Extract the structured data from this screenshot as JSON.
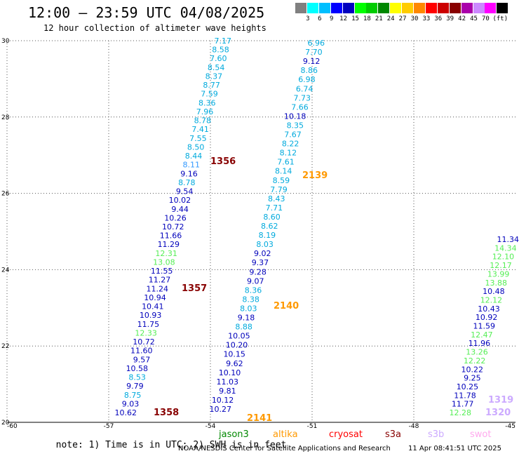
{
  "header": {
    "title": "12:00 — 23:59 UTC 04/08/2025",
    "subtitle": "12 hour collection of altimeter wave heights"
  },
  "colorbar": {
    "colors": [
      "#808080",
      "#00ffff",
      "#00bfff",
      "#0000ff",
      "#0000bf",
      "#00ff00",
      "#00cc00",
      "#008800",
      "#ffff00",
      "#ffcc00",
      "#ff8800",
      "#ff0000",
      "#cc0000",
      "#880000",
      "#aa00aa",
      "#cc88ff",
      "#ff00ff",
      "#000000"
    ],
    "labels": [
      "3",
      "6",
      "9",
      "12",
      "15",
      "18",
      "21",
      "24",
      "27",
      "30",
      "33",
      "36",
      "39",
      "42",
      "45",
      "70"
    ],
    "unit": "(ft)"
  },
  "map": {
    "lon_range": [
      -60,
      -45
    ],
    "lat_range": [
      20,
      30
    ],
    "x_ticks": [
      "-60",
      "-57",
      "-54",
      "-51",
      "-48",
      "-45"
    ],
    "y_ticks": [
      "20",
      "22",
      "24",
      "26",
      "28",
      "30"
    ],
    "tracks": [
      {
        "name": "track-1356-1358",
        "values": [
          "7.17",
          "8.58",
          "7.60",
          "8.54",
          "8.37",
          "8.77",
          "7.59",
          "8.36",
          "7.96",
          "8.78",
          "7.41",
          "7.55",
          "8.50",
          "8.44",
          "8.11",
          "9.16",
          "8.78",
          "9.54",
          "10.02",
          "9.44",
          "10.26",
          "10.72",
          "11.66",
          "11.29",
          "12.31",
          "13.08",
          "11.55",
          "11.27",
          "11.24",
          "10.94",
          "10.41",
          "10.93",
          "11.75",
          "12.33",
          "10.72",
          "11.60",
          "9.57",
          "10.58",
          "8.53",
          "9.79",
          "8.75",
          "9.03",
          "10.62"
        ],
        "colors": [
          "c",
          "c",
          "c",
          "c",
          "c",
          "c",
          "c",
          "c",
          "c",
          "c",
          "c",
          "c",
          "c",
          "c",
          "b",
          "n",
          "c",
          "n",
          "n",
          "n",
          "n",
          "n",
          "n",
          "n",
          "g",
          "g",
          "n",
          "n",
          "n",
          "n",
          "n",
          "n",
          "n",
          "g",
          "n",
          "n",
          "n",
          "n",
          "c",
          "n",
          "c",
          "n",
          "n"
        ]
      },
      {
        "name": "track-2139-2141",
        "values": [
          "6.96",
          "7.70",
          "9.12",
          "8.86",
          "6.98",
          "6.74",
          "7.73",
          "7.66",
          "10.18",
          "8.35",
          "7.67",
          "8.22",
          "8.12",
          "7.61",
          "8.14",
          "8.59",
          "7.79",
          "8.43",
          "7.71",
          "8.60",
          "8.62",
          "8.19",
          "8.03",
          "9.02",
          "9.37",
          "9.28",
          "9.07",
          "8.36",
          "8.38",
          "8.03",
          "9.18",
          "8.88",
          "10.05",
          "10.20",
          "10.15",
          "9.62",
          "10.10",
          "11.03",
          "9.81",
          "10.12",
          "10.27"
        ],
        "colors": [
          "c",
          "c",
          "n",
          "c",
          "c",
          "c",
          "c",
          "c",
          "n",
          "c",
          "c",
          "c",
          "c",
          "c",
          "c",
          "c",
          "c",
          "c",
          "c",
          "c",
          "c",
          "c",
          "c",
          "n",
          "n",
          "n",
          "n",
          "c",
          "c",
          "c",
          "n",
          "c",
          "n",
          "n",
          "n",
          "n",
          "n",
          "n",
          "n",
          "n",
          "n"
        ]
      },
      {
        "name": "track-1319-1320",
        "values": [
          "11.34",
          "14.34",
          "12.10",
          "12.17",
          "13.99",
          "13.88",
          "10.48",
          "12.12",
          "10.43",
          "10.92",
          "11.59",
          "12.47",
          "11.96",
          "13.26",
          "12.22",
          "10.22",
          "9.25",
          "10.25",
          "11.78",
          "11.77",
          "12.28"
        ],
        "colors": [
          "n",
          "g",
          "g",
          "g",
          "g",
          "g",
          "n",
          "g",
          "n",
          "n",
          "n",
          "g",
          "n",
          "g",
          "g",
          "n",
          "n",
          "n",
          "n",
          "n",
          "g"
        ]
      }
    ],
    "pass_labels": [
      {
        "text": "1356",
        "color": "#880000"
      },
      {
        "text": "1357",
        "color": "#880000"
      },
      {
        "text": "1358",
        "color": "#880000"
      },
      {
        "text": "2139",
        "color": "#ff9900"
      },
      {
        "text": "2140",
        "color": "#ff9900"
      },
      {
        "text": "2141",
        "color": "#ff9900"
      },
      {
        "text": "1319",
        "color": "#ccaaff"
      },
      {
        "text": "1320",
        "color": "#ccaaff"
      }
    ],
    "value_colors": {
      "c": "#00aadd",
      "n": "#0000bb",
      "g": "#55ee55",
      "b": "#3399ff"
    }
  },
  "footer": {
    "note": "note: 1) Time is in UTC; 2) SWH is in feet",
    "satellites": [
      {
        "name": "jason3",
        "color": "#008800"
      },
      {
        "name": "altika",
        "color": "#ff9900"
      },
      {
        "name": "cryosat",
        "color": "#ff0000"
      },
      {
        "name": "s3a",
        "color": "#880000"
      },
      {
        "name": "s3b",
        "color": "#ccaaff"
      },
      {
        "name": "swot",
        "color": "#ffaaee"
      }
    ],
    "credit": "NOAA/NESDIS Center for Satellite Applications and Research",
    "timestamp": "11 Apr 08:41:51 UTC 2025"
  }
}
